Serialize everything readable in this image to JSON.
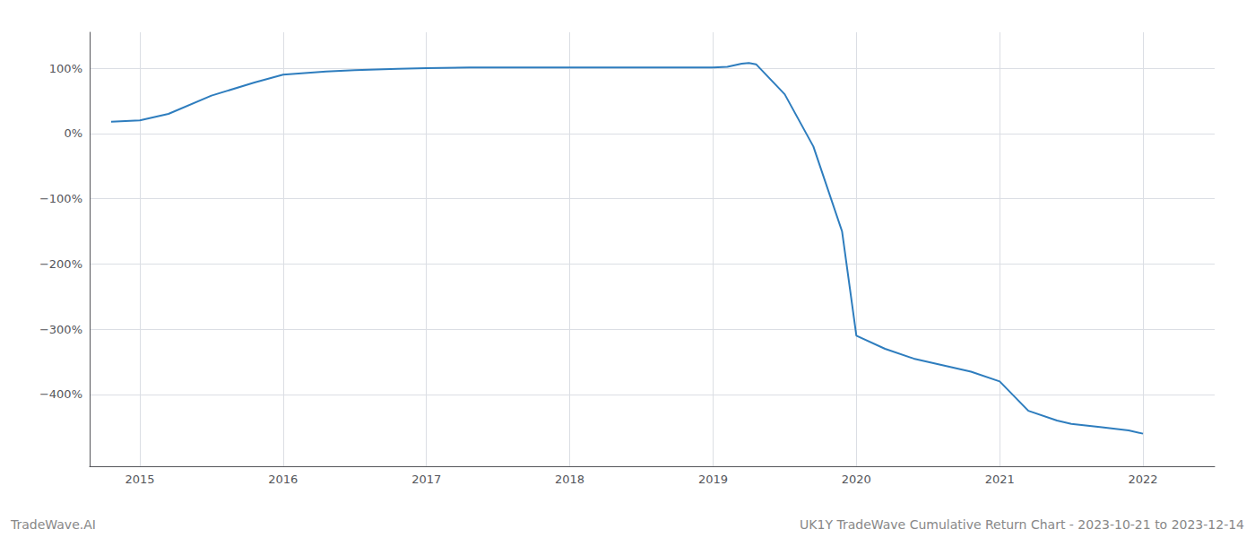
{
  "chart_data": {
    "type": "line",
    "x": [
      2014.8,
      2015.0,
      2015.2,
      2015.5,
      2015.8,
      2016.0,
      2016.3,
      2016.5,
      2016.8,
      2017.0,
      2017.3,
      2017.5,
      2017.8,
      2018.0,
      2018.3,
      2018.5,
      2018.8,
      2019.0,
      2019.1,
      2019.2,
      2019.25,
      2019.3,
      2019.5,
      2019.7,
      2019.9,
      2020.0,
      2020.2,
      2020.4,
      2020.6,
      2020.8,
      2021.0,
      2021.2,
      2021.4,
      2021.5,
      2021.7,
      2021.9,
      2022.0
    ],
    "values": [
      18,
      20,
      30,
      58,
      78,
      90,
      95,
      97,
      99,
      100,
      101,
      101,
      101,
      101,
      101,
      101,
      101,
      101,
      102,
      107,
      108,
      106,
      60,
      -20,
      -150,
      -310,
      -330,
      -345,
      -355,
      -365,
      -380,
      -425,
      -440,
      -445,
      -450,
      -455,
      -460
    ],
    "color": "#2e7dbe",
    "xlim": [
      2014.65,
      2022.5
    ],
    "xticks": [
      2015,
      2016,
      2017,
      2018,
      2019,
      2020,
      2021,
      2022
    ],
    "ylim": [
      -510,
      155
    ],
    "yticks": [
      {
        "value": 100,
        "label": "100%"
      },
      {
        "value": 0,
        "label": "0%"
      },
      {
        "value": -100,
        "label": "−100%"
      },
      {
        "value": -200,
        "label": "−200%"
      },
      {
        "value": -300,
        "label": "−300%"
      },
      {
        "value": -400,
        "label": "−400%"
      }
    ],
    "grid": true,
    "annotations": [
      "TradeWave.AI",
      "UK1Y TradeWave Cumulative Return Chart - 2023-10-21 to 2023-12-14"
    ]
  }
}
